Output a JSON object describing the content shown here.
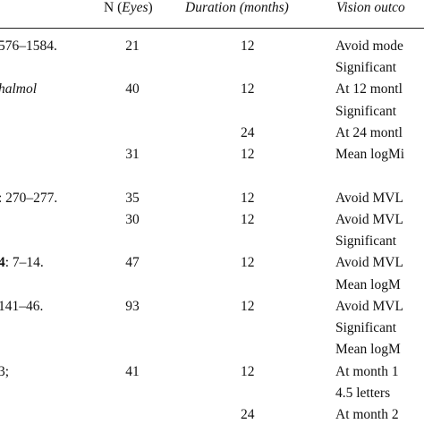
{
  "header": {
    "n_prefix": "N (",
    "n_italic": "Eyes",
    "n_suffix": ")",
    "duration": "Duration (months)",
    "vision": "Vision outco"
  },
  "rows": [
    {
      "ref": "576–1584.",
      "n": "21",
      "dur": "12",
      "vision": "Avoid mode"
    },
    {
      "ref": "",
      "n": "",
      "dur": "",
      "vision": "Significant "
    },
    {
      "ref": "halmol",
      "n": "40",
      "dur": "12",
      "vision": "At 12 montl"
    },
    {
      "ref": "",
      "n": "",
      "dur": "",
      "vision": "Significant "
    },
    {
      "ref": "",
      "n": "",
      "dur": "24",
      "vision": "At 24 montl"
    },
    {
      "ref": "",
      "n": "31",
      "dur": "12",
      "vision": "Mean logMi"
    },
    {
      "ref": ": 270–277.",
      "n": "35",
      "dur": "12",
      "vision": "Avoid MVL"
    },
    {
      "ref": "",
      "n": "30",
      "dur": "12",
      "vision": "Avoid MVL"
    },
    {
      "ref": "",
      "n": "",
      "dur": "",
      "vision": "Significant "
    },
    {
      "ref": "4: 7–14.",
      "n": "47",
      "dur": "12",
      "vision": "Avoid MVL"
    },
    {
      "ref": "",
      "n": "",
      "dur": "",
      "vision": "Mean logM"
    },
    {
      "ref": "141–46.",
      "n": "93",
      "dur": "12",
      "vision": "Avoid MVL"
    },
    {
      "ref": "",
      "n": "",
      "dur": "",
      "vision": "Significant "
    },
    {
      "ref": "",
      "n": "",
      "dur": "",
      "vision": "Mean logM"
    },
    {
      "ref": "3;",
      "n": "41",
      "dur": "12",
      "vision": "At month 1"
    },
    {
      "ref": "",
      "n": "",
      "dur": "",
      "vision": "4.5 letters"
    },
    {
      "ref": "",
      "n": "",
      "dur": "24",
      "vision": "At month 2"
    }
  ]
}
